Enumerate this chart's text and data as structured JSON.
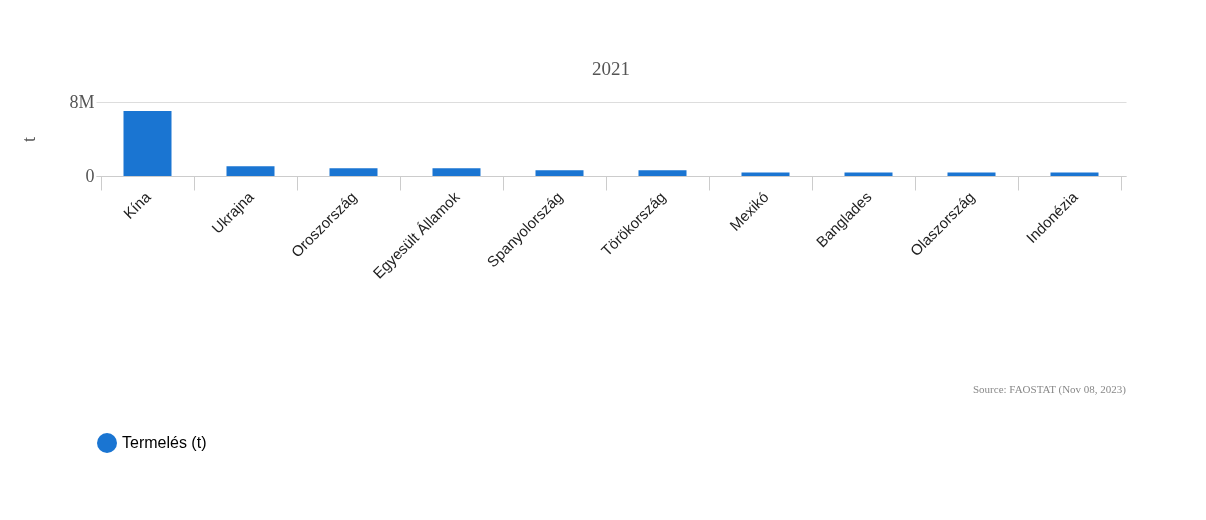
{
  "chart_data": {
    "type": "bar",
    "title": "2021",
    "ylabel": "t",
    "categories": [
      "Kína",
      "Ukrajna",
      "Oroszország",
      "Egyesült Államok",
      "Spanyolország",
      "Törökország",
      "Mexikó",
      "Banglades",
      "Olaszország",
      "Indonézia"
    ],
    "series": [
      {
        "name": "Termelés  (t)",
        "color": "#1a75d2",
        "values": [
          7040000,
          1050000,
          840000,
          840000,
          630000,
          620000,
          390000,
          390000,
          390000,
          390000
        ]
      }
    ],
    "ylim": [
      0,
      8000000
    ],
    "yticks": [
      0,
      {
        "value": 8000000,
        "label": "8M"
      }
    ],
    "grid": "y",
    "legend": "bottom",
    "annotations": [
      "Source: FAOSTAT (Nov 08, 2023)"
    ]
  }
}
